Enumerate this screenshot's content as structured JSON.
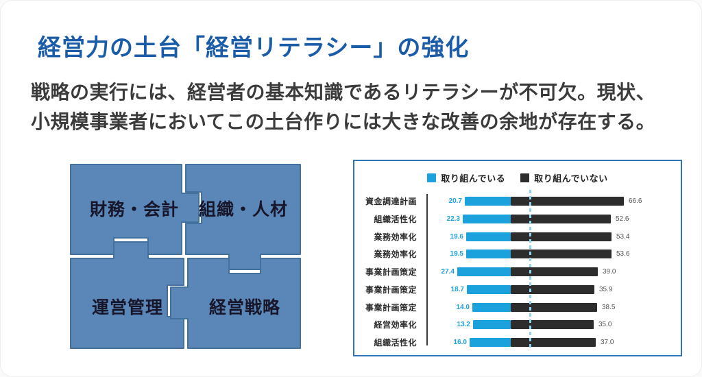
{
  "slide": {
    "title": "経営力の土台「経営リテラシー」の強化",
    "body_line1": "戦略の実行には、経営者の基本知識であるリテラシーが不可欠。現状、",
    "body_line2": "小規模事業者においてこの土台作りには大きな改善の余地が存在する。"
  },
  "puzzle": {
    "pieces": [
      {
        "label": "財務・会計"
      },
      {
        "label": "組織・人材"
      },
      {
        "label": "運営管理"
      },
      {
        "label": "経営戦略"
      }
    ],
    "fill_color": "#5b87b8",
    "edge_color": "#41719c"
  },
  "chart_data": {
    "type": "bar",
    "orientation": "horizontal-diverging-stacked",
    "title": "",
    "legend_position": "top-center",
    "legend": [
      {
        "label": "取り組んでいる",
        "color": "#1ba1dc"
      },
      {
        "label": "取り組んでいない",
        "color": "#2d2d2d"
      }
    ],
    "categories": [
      "資金調達計画",
      "組織活性化",
      "業務効率化",
      "業務効率化",
      "事業計画策定",
      "事業計画策定",
      "事業計画策定",
      "経営効率化",
      "組織活性化"
    ],
    "series": [
      {
        "name": "取り組んでいる",
        "values": [
          20.7,
          22.3,
          19.6,
          19.5,
          27.4,
          18.7,
          14.0,
          13.2,
          16.0
        ]
      },
      {
        "name": "取り組んでいない",
        "values": [
          66.6,
          52.6,
          53.4,
          53.6,
          39.0,
          35.9,
          38.5,
          35.0,
          37.0
        ]
      }
    ],
    "value_labels_shown": true,
    "box_border_color": "#2e75b6",
    "dashed_guide_color": "#8ed4f0",
    "blue_value_text_color": "#1ba1dc",
    "dark_value_text_color": "#555555"
  },
  "colors": {
    "title_blue": "#1b5ca8",
    "body_text": "#3b3b3b"
  }
}
